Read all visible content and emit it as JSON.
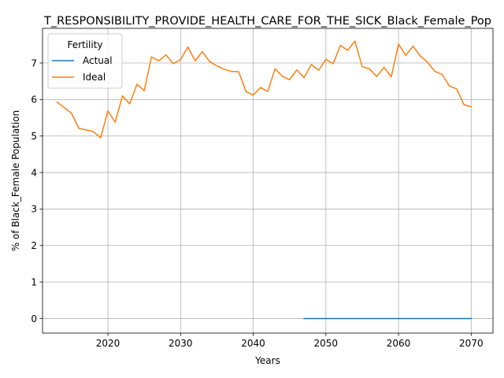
{
  "chart_data": {
    "type": "line",
    "title": "T_RESPONSIBILITY_PROVIDE_HEALTH_CARE_FOR_THE_SICK_Black_Female_Pop",
    "xlabel": "Years",
    "ylabel": "% of Black_Female Population",
    "xlim": [
      2011,
      2073
    ],
    "ylim": [
      -0.4,
      7.95
    ],
    "xticks": [
      2020,
      2030,
      2040,
      2050,
      2060,
      2070
    ],
    "yticks": [
      0,
      1,
      2,
      3,
      4,
      5,
      6,
      7
    ],
    "grid": true,
    "legend": {
      "title": "Fertility",
      "placement": "top-left"
    },
    "series": [
      {
        "name": "Actual",
        "color": "#1f77b4",
        "x": [
          2047,
          2048,
          2049,
          2050,
          2051,
          2052,
          2053,
          2054,
          2055,
          2056,
          2057,
          2058,
          2059,
          2060,
          2061,
          2062,
          2063,
          2064,
          2065,
          2066,
          2067,
          2068,
          2069,
          2070
        ],
        "y": [
          0,
          0,
          0,
          0,
          0,
          0,
          0,
          0,
          0,
          0,
          0,
          0,
          0,
          0,
          0,
          0,
          0,
          0,
          0,
          0,
          0,
          0,
          0,
          0
        ]
      },
      {
        "name": "Ideal",
        "color": "#ff7f0e",
        "x": [
          2013,
          2014,
          2015,
          2016,
          2017,
          2018,
          2019,
          2020,
          2021,
          2022,
          2023,
          2024,
          2025,
          2026,
          2027,
          2028,
          2029,
          2030,
          2031,
          2032,
          2033,
          2034,
          2035,
          2036,
          2037,
          2038,
          2039,
          2040,
          2041,
          2042,
          2043,
          2044,
          2045,
          2046,
          2047,
          2048,
          2049,
          2050,
          2051,
          2052,
          2053,
          2054,
          2055,
          2056,
          2057,
          2058,
          2059,
          2060,
          2061,
          2062,
          2063,
          2064,
          2065,
          2066,
          2067,
          2068,
          2069,
          2070
        ],
        "y": [
          5.93,
          5.78,
          5.62,
          5.21,
          5.17,
          5.12,
          4.95,
          5.69,
          5.38,
          6.1,
          5.88,
          6.42,
          6.24,
          7.17,
          7.06,
          7.22,
          6.98,
          7.09,
          7.44,
          7.06,
          7.31,
          7.04,
          6.92,
          6.83,
          6.77,
          6.76,
          6.22,
          6.12,
          6.33,
          6.22,
          6.84,
          6.64,
          6.54,
          6.81,
          6.6,
          6.96,
          6.8,
          7.1,
          6.98,
          7.48,
          7.35,
          7.6,
          6.9,
          6.84,
          6.63,
          6.88,
          6.62,
          7.52,
          7.21,
          7.46,
          7.19,
          7.02,
          6.77,
          6.69,
          6.37,
          6.29,
          5.86,
          5.8
        ]
      }
    ]
  }
}
